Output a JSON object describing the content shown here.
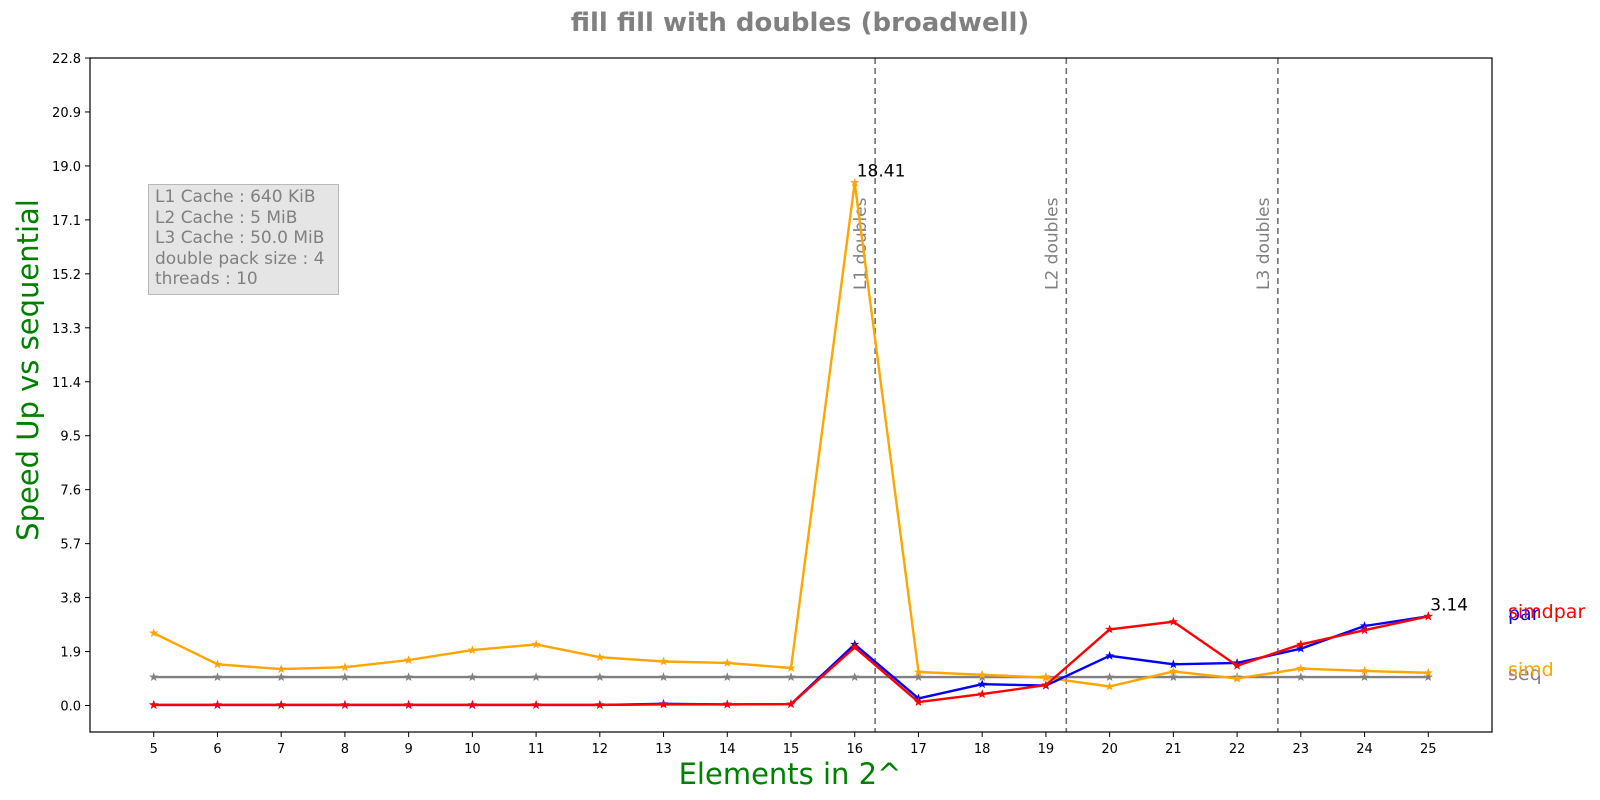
{
  "title": "fill fill with doubles  (broadwell)",
  "info_box": [
    "L1 Cache : 640 KiB",
    "L2 Cache : 5 MiB",
    "L3 Cache : 50.0 MiB",
    "double pack size : 4",
    "threads : 10"
  ],
  "chart_data": {
    "type": "line",
    "title": "fill fill with doubles  (broadwell)",
    "xlabel": "Elements in 2^",
    "ylabel": "Speed Up vs sequential",
    "x": [
      5,
      6,
      7,
      8,
      9,
      10,
      11,
      12,
      13,
      14,
      15,
      16,
      17,
      18,
      19,
      20,
      21,
      22,
      23,
      24,
      25
    ],
    "xlim": [
      4,
      26
    ],
    "ylim": [
      -0.5,
      22.8
    ],
    "yticks": [
      "0.0",
      "1.9",
      "3.8",
      "5.7",
      "7.6",
      "9.5",
      "11.4",
      "13.3",
      "15.2",
      "17.1",
      "19.0",
      "20.9",
      "22.8"
    ],
    "grid": false,
    "series": [
      {
        "name": "seq",
        "color": "#808080",
        "values": [
          1,
          1,
          1,
          1,
          1,
          1,
          1,
          1,
          1,
          1,
          1,
          1,
          1,
          1,
          1,
          1,
          1,
          1,
          1,
          1,
          1
        ]
      },
      {
        "name": "simd",
        "color": "#ffa500",
        "values": [
          2.55,
          1.45,
          1.28,
          1.35,
          1.6,
          1.95,
          2.15,
          1.7,
          1.55,
          1.5,
          1.32,
          18.41,
          1.18,
          1.08,
          0.98,
          0.67,
          1.2,
          0.95,
          1.3,
          1.22,
          1.15
        ]
      },
      {
        "name": "par",
        "color": "#0000ff",
        "values": [
          0.02,
          0.02,
          0.02,
          0.02,
          0.02,
          0.02,
          0.02,
          0.02,
          0.06,
          0.04,
          0.05,
          2.15,
          0.25,
          0.75,
          0.7,
          1.75,
          1.45,
          1.5,
          2.0,
          2.8,
          3.14
        ]
      },
      {
        "name": "simdpar",
        "color": "#ff0000",
        "values": [
          0.02,
          0.02,
          0.02,
          0.02,
          0.02,
          0.02,
          0.02,
          0.02,
          0.04,
          0.04,
          0.05,
          2.05,
          0.12,
          0.4,
          0.72,
          2.68,
          2.95,
          1.4,
          2.15,
          2.65,
          3.14
        ]
      }
    ],
    "annotations": [
      {
        "text": "18.41",
        "x": 16,
        "y": 18.41
      },
      {
        "text": "3.14",
        "x": 25,
        "y": 3.14
      }
    ],
    "vlines": [
      {
        "label": "L1 doubles",
        "x": 16.32
      },
      {
        "label": "L2 doubles",
        "x": 19.32
      },
      {
        "label": "L3 doubles",
        "x": 22.64
      }
    ]
  }
}
